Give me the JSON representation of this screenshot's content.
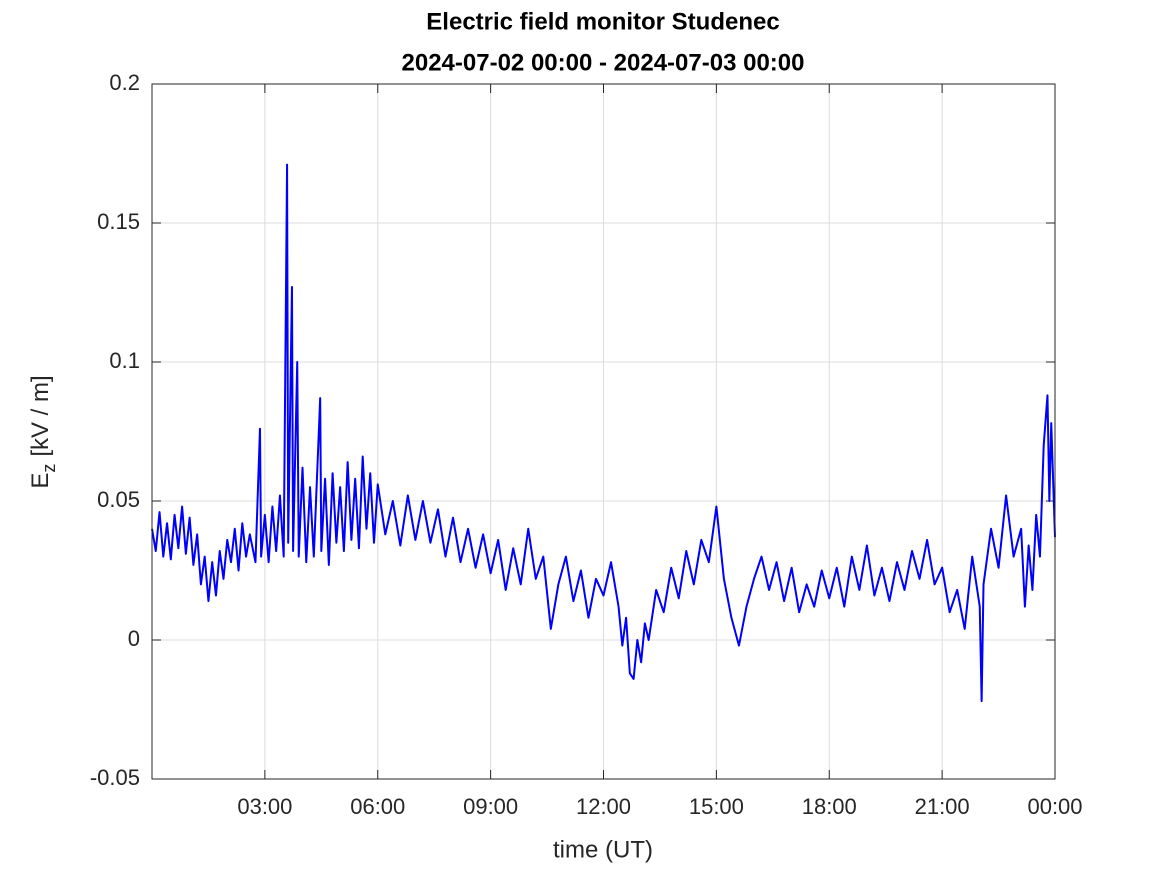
{
  "chart_data": {
    "type": "line",
    "title": "Electric field monitor Studenec",
    "subtitle": "2024-07-02 00:00 - 2024-07-03 00:00",
    "xlabel": "time (UT)",
    "ylabel": "E",
    "ylabel_sub": "z",
    "ylabel_unit": "[kV / m]",
    "color": "#0000ff",
    "grid": true,
    "xlim": [
      0,
      24
    ],
    "xticks": [
      {
        "value": 3,
        "label": "03:00"
      },
      {
        "value": 6,
        "label": "06:00"
      },
      {
        "value": 9,
        "label": "09:00"
      },
      {
        "value": 12,
        "label": "12:00"
      },
      {
        "value": 15,
        "label": "15:00"
      },
      {
        "value": 18,
        "label": "18:00"
      },
      {
        "value": 21,
        "label": "21:00"
      },
      {
        "value": 24,
        "label": "00:00"
      }
    ],
    "ylim": [
      -0.05,
      0.2
    ],
    "yticks": [
      -0.05,
      0,
      0.05,
      0.1,
      0.15,
      0.2
    ],
    "x": [
      0,
      0.1,
      0.2,
      0.3,
      0.4,
      0.5,
      0.6,
      0.7,
      0.8,
      0.9,
      1.0,
      1.1,
      1.2,
      1.3,
      1.4,
      1.5,
      1.6,
      1.7,
      1.8,
      1.9,
      2.0,
      2.1,
      2.2,
      2.3,
      2.4,
      2.5,
      2.6,
      2.75,
      2.87,
      2.9,
      3.0,
      3.1,
      3.2,
      3.3,
      3.4,
      3.5,
      3.59,
      3.62,
      3.72,
      3.75,
      3.86,
      3.9,
      4.0,
      4.1,
      4.2,
      4.3,
      4.47,
      4.5,
      4.6,
      4.7,
      4.8,
      4.9,
      5.0,
      5.1,
      5.2,
      5.3,
      5.4,
      5.5,
      5.6,
      5.7,
      5.8,
      5.9,
      6.0,
      6.2,
      6.4,
      6.6,
      6.8,
      7.0,
      7.2,
      7.4,
      7.6,
      7.8,
      8.0,
      8.2,
      8.4,
      8.6,
      8.8,
      9.0,
      9.2,
      9.4,
      9.6,
      9.8,
      10.0,
      10.2,
      10.4,
      10.6,
      10.8,
      11.0,
      11.2,
      11.4,
      11.6,
      11.8,
      12.0,
      12.2,
      12.4,
      12.5,
      12.6,
      12.7,
      12.8,
      12.9,
      13.0,
      13.1,
      13.2,
      13.4,
      13.6,
      13.8,
      14.0,
      14.2,
      14.4,
      14.6,
      14.8,
      15.0,
      15.2,
      15.4,
      15.6,
      15.8,
      16.0,
      16.2,
      16.4,
      16.6,
      16.8,
      17.0,
      17.2,
      17.4,
      17.6,
      17.8,
      18.0,
      18.2,
      18.4,
      18.6,
      18.8,
      19.0,
      19.2,
      19.4,
      19.6,
      19.8,
      20.0,
      20.2,
      20.4,
      20.6,
      20.8,
      21.0,
      21.2,
      21.4,
      21.6,
      21.8,
      22.0,
      22.05,
      22.1,
      22.3,
      22.5,
      22.7,
      22.9,
      23.1,
      23.2,
      23.3,
      23.4,
      23.5,
      23.6,
      23.7,
      23.8,
      23.85,
      23.9,
      24.0
    ],
    "values": [
      0.04,
      0.032,
      0.046,
      0.03,
      0.042,
      0.029,
      0.045,
      0.033,
      0.048,
      0.031,
      0.044,
      0.027,
      0.038,
      0.02,
      0.03,
      0.014,
      0.028,
      0.016,
      0.032,
      0.022,
      0.036,
      0.028,
      0.04,
      0.025,
      0.042,
      0.03,
      0.038,
      0.028,
      0.076,
      0.03,
      0.045,
      0.028,
      0.048,
      0.032,
      0.052,
      0.03,
      0.171,
      0.035,
      0.127,
      0.032,
      0.1,
      0.03,
      0.062,
      0.028,
      0.055,
      0.03,
      0.087,
      0.032,
      0.058,
      0.027,
      0.06,
      0.035,
      0.055,
      0.032,
      0.064,
      0.036,
      0.058,
      0.033,
      0.066,
      0.04,
      0.06,
      0.035,
      0.056,
      0.038,
      0.05,
      0.034,
      0.052,
      0.036,
      0.05,
      0.035,
      0.047,
      0.03,
      0.044,
      0.028,
      0.04,
      0.026,
      0.038,
      0.024,
      0.036,
      0.018,
      0.033,
      0.02,
      0.04,
      0.022,
      0.03,
      0.004,
      0.02,
      0.03,
      0.014,
      0.025,
      0.008,
      0.022,
      0.016,
      0.028,
      0.012,
      -0.002,
      0.008,
      -0.012,
      -0.014,
      0.0,
      -0.008,
      0.006,
      0.0,
      0.018,
      0.01,
      0.026,
      0.015,
      0.032,
      0.02,
      0.036,
      0.028,
      0.048,
      0.022,
      0.008,
      -0.002,
      0.012,
      0.022,
      0.03,
      0.018,
      0.028,
      0.014,
      0.026,
      0.01,
      0.02,
      0.012,
      0.025,
      0.015,
      0.026,
      0.012,
      0.03,
      0.018,
      0.034,
      0.016,
      0.026,
      0.014,
      0.028,
      0.018,
      0.032,
      0.022,
      0.036,
      0.02,
      0.026,
      0.01,
      0.018,
      0.004,
      0.03,
      0.012,
      -0.022,
      0.02,
      0.04,
      0.026,
      0.052,
      0.03,
      0.04,
      0.012,
      0.034,
      0.018,
      0.045,
      0.03,
      0.07,
      0.088,
      0.05,
      0.078,
      0.037
    ]
  }
}
